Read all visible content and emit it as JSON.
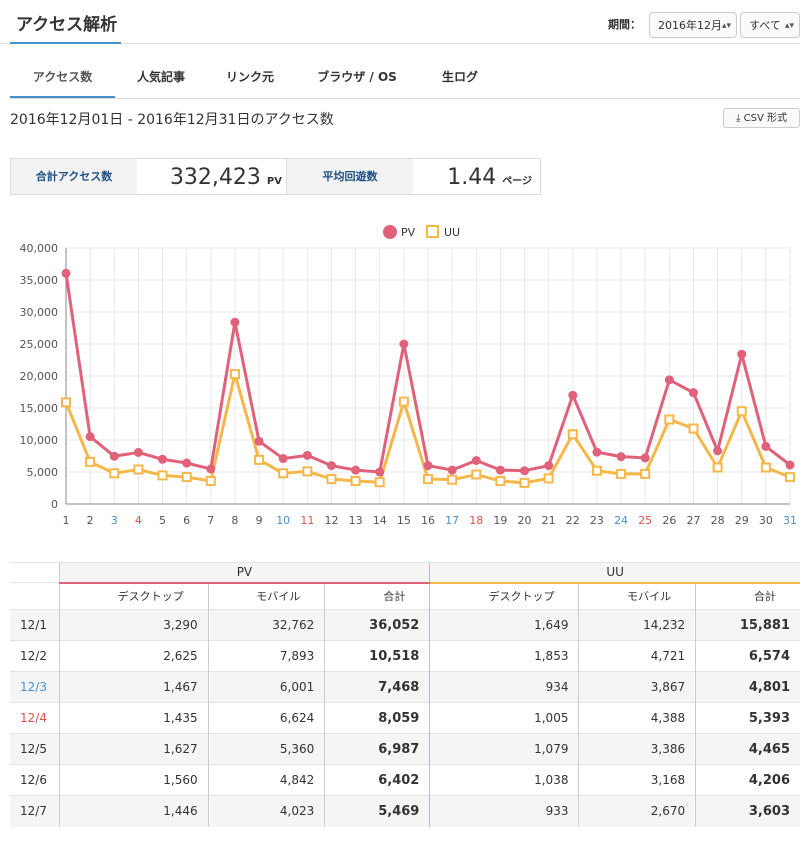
{
  "header": {
    "title": "アクセス解析",
    "period_label": "期間：",
    "period_value": "2016年12月",
    "filter_value": "すべて"
  },
  "tabs": [
    {
      "label": "アクセス数",
      "active": true
    },
    {
      "label": "人気記事",
      "active": false
    },
    {
      "label": "リンク元",
      "active": false
    },
    {
      "label": "ブラウザ / OS",
      "active": false
    },
    {
      "label": "生ログ",
      "active": false
    }
  ],
  "range_text": "2016年12月01日 - 2016年12月31日のアクセス数",
  "csv_label": "CSV 形式",
  "stats": {
    "total_label": "合計アクセス数",
    "total_value": "332,423",
    "total_unit": "PV",
    "avg_label": "平均回遊数",
    "avg_value": "1.44",
    "avg_unit": "ページ"
  },
  "colors": {
    "pv": "#e0627a",
    "uu": "#f5b74a",
    "accent": "#4a90c8",
    "sunday": "#4a90c8",
    "saturday": "#d9534f"
  },
  "chart_data": {
    "type": "line",
    "x": [
      1,
      2,
      3,
      4,
      5,
      6,
      7,
      8,
      9,
      10,
      11,
      12,
      13,
      14,
      15,
      16,
      17,
      18,
      19,
      20,
      21,
      22,
      23,
      24,
      25,
      26,
      27,
      28,
      29,
      30,
      31
    ],
    "x_ticks": [
      "1",
      "2",
      "3",
      "4",
      "5",
      "6",
      "7",
      "8",
      "9",
      "10",
      "11",
      "12",
      "13",
      "14",
      "15",
      "16",
      "17",
      "18",
      "19",
      "20",
      "21",
      "22",
      "23",
      "24",
      "25",
      "26",
      "27",
      "28",
      "29",
      "30",
      "31"
    ],
    "sunday_ticks": [
      "3",
      "10",
      "17",
      "24",
      "31"
    ],
    "saturday_ticks": [
      "4",
      "11",
      "18",
      "25"
    ],
    "y_ticks": [
      "0",
      "5,000",
      "10,000",
      "15,000",
      "20,000",
      "25,000",
      "30,000",
      "35,000",
      "40,000"
    ],
    "ylim": [
      0,
      40000
    ],
    "legend": "top-center",
    "grid": true,
    "series": [
      {
        "name": "PV",
        "values": [
          36052,
          10518,
          7468,
          8059,
          6987,
          6402,
          5469,
          28400,
          9800,
          7100,
          7600,
          6000,
          5300,
          5000,
          25000,
          6000,
          5300,
          6800,
          5300,
          5200,
          6000,
          17000,
          8100,
          7400,
          7200,
          19400,
          17400,
          8300,
          23400,
          9000,
          6100
        ]
      },
      {
        "name": "UU",
        "values": [
          15881,
          6574,
          4801,
          5393,
          4465,
          4206,
          3603,
          20300,
          6900,
          4800,
          5100,
          3900,
          3600,
          3400,
          16000,
          3900,
          3800,
          4600,
          3600,
          3300,
          4000,
          10900,
          5200,
          4700,
          4700,
          13200,
          11800,
          5700,
          14500,
          5700,
          4200
        ]
      }
    ]
  },
  "table": {
    "group_pv": "PV",
    "group_uu": "UU",
    "sub_headers": [
      "デスクトップ",
      "モバイル",
      "合計",
      "デスクトップ",
      "モバイル",
      "合計"
    ],
    "rows": [
      {
        "date": "12/1",
        "day": "",
        "pv_desktop": "3,290",
        "pv_mobile": "32,762",
        "pv_total": "36,052",
        "uu_desktop": "1,649",
        "uu_mobile": "14,232",
        "uu_total": "15,881"
      },
      {
        "date": "12/2",
        "day": "",
        "pv_desktop": "2,625",
        "pv_mobile": "7,893",
        "pv_total": "10,518",
        "uu_desktop": "1,853",
        "uu_mobile": "4,721",
        "uu_total": "6,574"
      },
      {
        "date": "12/3",
        "day": "sun",
        "pv_desktop": "1,467",
        "pv_mobile": "6,001",
        "pv_total": "7,468",
        "uu_desktop": "934",
        "uu_mobile": "3,867",
        "uu_total": "4,801"
      },
      {
        "date": "12/4",
        "day": "sat",
        "pv_desktop": "1,435",
        "pv_mobile": "6,624",
        "pv_total": "8,059",
        "uu_desktop": "1,005",
        "uu_mobile": "4,388",
        "uu_total": "5,393"
      },
      {
        "date": "12/5",
        "day": "",
        "pv_desktop": "1,627",
        "pv_mobile": "5,360",
        "pv_total": "6,987",
        "uu_desktop": "1,079",
        "uu_mobile": "3,386",
        "uu_total": "4,465"
      },
      {
        "date": "12/6",
        "day": "",
        "pv_desktop": "1,560",
        "pv_mobile": "4,842",
        "pv_total": "6,402",
        "uu_desktop": "1,038",
        "uu_mobile": "3,168",
        "uu_total": "4,206"
      },
      {
        "date": "12/7",
        "day": "",
        "pv_desktop": "1,446",
        "pv_mobile": "4,023",
        "pv_total": "5,469",
        "uu_desktop": "933",
        "uu_mobile": "2,670",
        "uu_total": "3,603"
      }
    ]
  }
}
